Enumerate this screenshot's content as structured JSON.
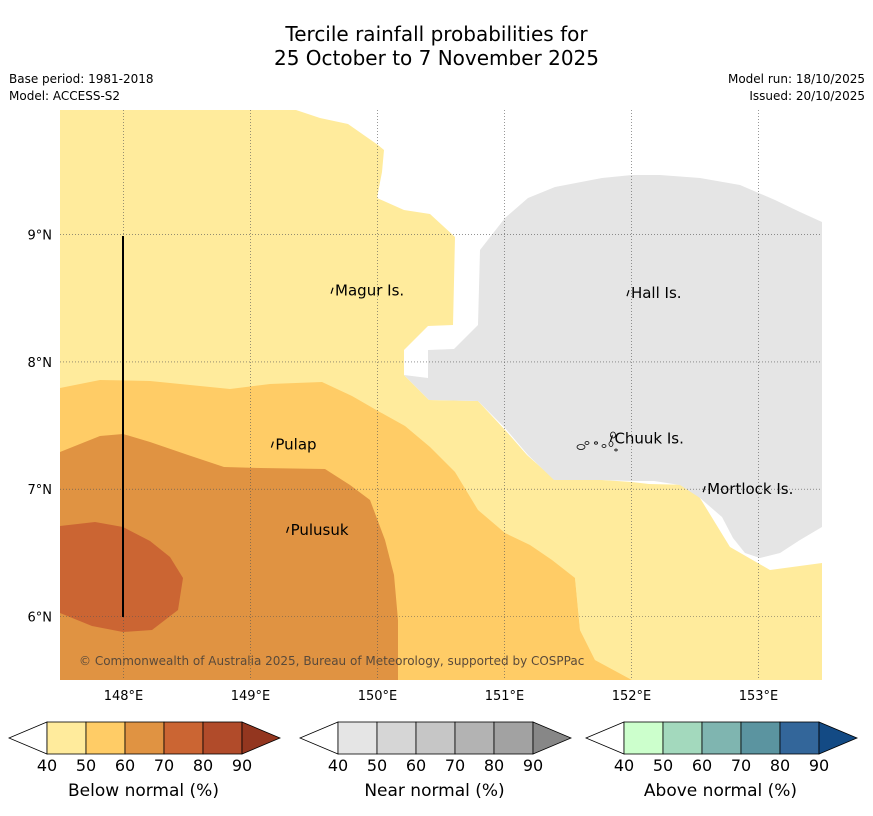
{
  "title": {
    "line1": "Tercile rainfall probabilities for",
    "line2": "25 October to 7 November 2025"
  },
  "meta": {
    "base_period": "Base period: 1981-2018",
    "model": "Model: ACCESS-S2",
    "model_run": "Model run: 18/10/2025",
    "issued": "Issued: 20/10/2025"
  },
  "map": {
    "lon_ticks": [
      "148°E",
      "149°E",
      "150°E",
      "151°E",
      "152°E",
      "153°E"
    ],
    "lat_ticks": [
      "9°N",
      "8°N",
      "7°N",
      "6°N"
    ],
    "lon_range": [
      147.5,
      153.5
    ],
    "lat_range": [
      5.5,
      9.98
    ],
    "places": [
      {
        "name": "Magur Is.",
        "lon": 149.65,
        "lat": 8.56
      },
      {
        "name": "Hall Is.",
        "lon": 151.98,
        "lat": 8.54
      },
      {
        "name": "Pulap",
        "lon": 149.18,
        "lat": 7.35
      },
      {
        "name": "Chuuk Is.",
        "lon": 151.85,
        "lat": 7.4
      },
      {
        "name": "Mortlock Is.",
        "lon": 152.58,
        "lat": 7.0
      },
      {
        "name": "Pulusuk",
        "lon": 149.3,
        "lat": 6.68
      }
    ],
    "zones": [
      {
        "category": "below",
        "level": "40-50",
        "color": "#ffeb9c"
      },
      {
        "category": "below",
        "level": "50-60",
        "color": "#ffcc66"
      },
      {
        "category": "below",
        "level": "60-70",
        "color": "#e09342"
      },
      {
        "category": "below",
        "level": "70-80",
        "color": "#cb6533"
      },
      {
        "category": "near",
        "level": "40-50",
        "color": "#e5e5e5"
      }
    ],
    "copyright": "© Commonwealth of Australia 2025, Bureau of Meteorology, supported by COSPPac"
  },
  "legend": [
    {
      "label": "Below normal (%)",
      "ticks": [
        "40",
        "50",
        "60",
        "70",
        "80",
        "90"
      ],
      "colors": [
        "#ffeb9c",
        "#ffcc66",
        "#e09342",
        "#cb6533",
        "#b14b2a",
        "#93361f"
      ]
    },
    {
      "label": "Near normal (%)",
      "ticks": [
        "40",
        "50",
        "60",
        "70",
        "80",
        "90"
      ],
      "colors": [
        "#e5e5e5",
        "#d6d6d6",
        "#c6c6c6",
        "#b3b3b3",
        "#a2a2a2",
        "#878787"
      ]
    },
    {
      "label": "Above normal (%)",
      "ticks": [
        "40",
        "50",
        "60",
        "70",
        "80",
        "90"
      ],
      "colors": [
        "#ccffcc",
        "#a3d9bd",
        "#7fb5b0",
        "#5b94a0",
        "#33669a",
        "#134a84"
      ]
    }
  ]
}
